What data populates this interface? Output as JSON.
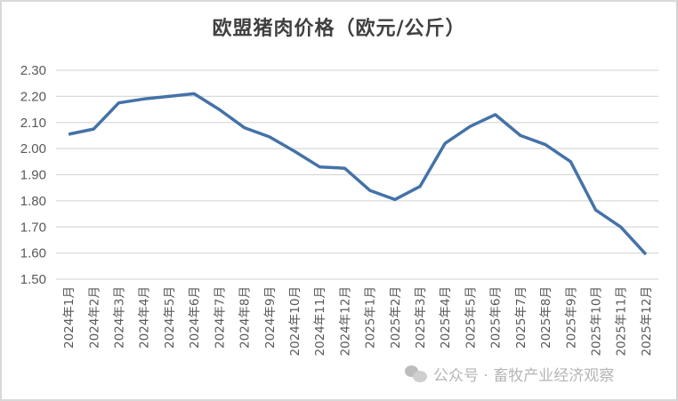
{
  "chart_data": {
    "type": "line",
    "title": "欧盟猪肉价格（欧元/公斤）",
    "xlabel": "",
    "ylabel": "",
    "ylim": [
      1.5,
      2.3
    ],
    "yticks": [
      "2.30",
      "2.20",
      "2.10",
      "2.00",
      "1.90",
      "1.80",
      "1.70",
      "1.60",
      "1.50"
    ],
    "grid": true,
    "legend": "none",
    "categories": [
      "2024年1月",
      "2024年2月",
      "2024年3月",
      "2024年4月",
      "2024年5月",
      "2024年6月",
      "2024年7月",
      "2024年8月",
      "2024年9月",
      "2024年10月",
      "2024年11月",
      "2024年12月",
      "2025年1月",
      "2025年2月",
      "2025年3月",
      "2025年4月",
      "2025年5月",
      "2025年6月",
      "2025年7月",
      "2025年8月",
      "2025年9月",
      "2025年10月",
      "2025年11月",
      "2025年12月"
    ],
    "series": [
      {
        "name": "欧盟猪肉价格",
        "color": "#4472a8",
        "values": [
          2.055,
          2.075,
          2.175,
          2.19,
          2.2,
          2.21,
          2.15,
          2.08,
          2.045,
          1.99,
          1.93,
          1.925,
          1.84,
          1.805,
          1.855,
          2.02,
          2.085,
          2.13,
          2.05,
          2.015,
          1.95,
          1.765,
          1.7,
          1.595
        ]
      }
    ]
  },
  "watermark": {
    "text": "公众号 · 畜牧产业经济观察",
    "icon": "wechat-icon"
  }
}
